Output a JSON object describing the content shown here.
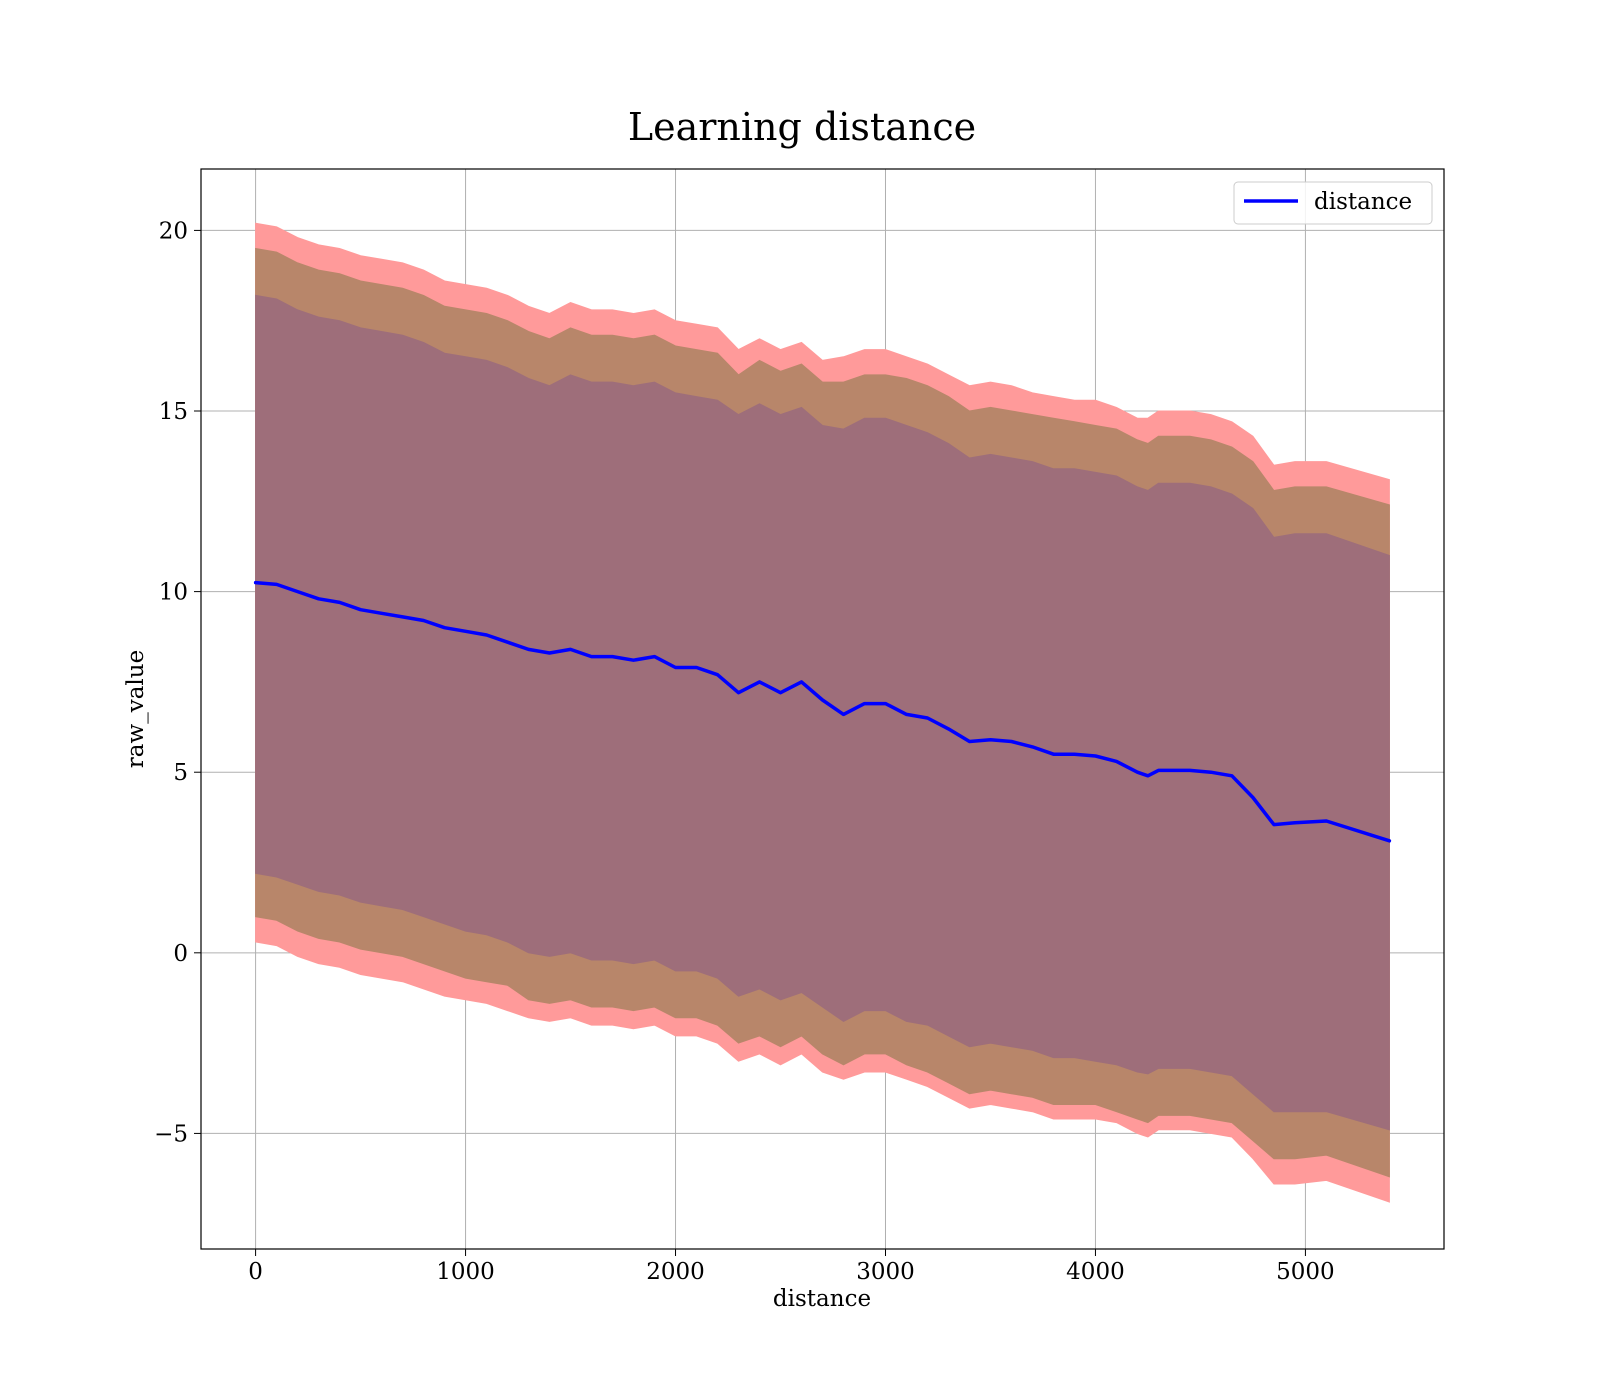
{
  "chart_data": {
    "type": "line",
    "title": "Learning distance",
    "xlabel": "distance",
    "ylabel": "raw_value",
    "xlim": [
      -260,
      5660
    ],
    "ylim": [
      -8.2,
      21.7
    ],
    "xticks": [
      0,
      1000,
      2000,
      3000,
      4000,
      5000
    ],
    "yticks": [
      -5,
      0,
      5,
      10,
      15,
      20
    ],
    "xtick_labels": [
      "0",
      "1000",
      "2000",
      "3000",
      "4000",
      "5000"
    ],
    "ytick_labels": [
      "−5",
      "0",
      "5",
      "10",
      "15",
      "20"
    ],
    "grid": true,
    "legend": {
      "placement": "top-right",
      "entries": [
        "distance"
      ]
    },
    "colors": {
      "line": "#0000ff",
      "band_outer": "#ff9a9a",
      "band_middle": "#b8866a",
      "band_inner": "#9e6e7a"
    },
    "series": [
      {
        "name": "distance",
        "x": [
          0,
          100,
          200,
          300,
          400,
          500,
          600,
          700,
          800,
          900,
          1000,
          1100,
          1200,
          1300,
          1400,
          1500,
          1600,
          1700,
          1800,
          1900,
          2000,
          2100,
          2200,
          2300,
          2400,
          2500,
          2600,
          2700,
          2800,
          2900,
          3000,
          3100,
          3200,
          3300,
          3400,
          3500,
          3600,
          3700,
          3800,
          3900,
          4000,
          4100,
          4200,
          4250,
          4300,
          4450,
          4550,
          4650,
          4750,
          4850,
          4950,
          5100,
          5400
        ],
        "y": [
          10.25,
          10.2,
          10.0,
          9.8,
          9.7,
          9.5,
          9.4,
          9.3,
          9.2,
          9.0,
          8.9,
          8.8,
          8.6,
          8.4,
          8.3,
          8.4,
          8.2,
          8.2,
          8.1,
          8.2,
          7.9,
          7.9,
          7.7,
          7.2,
          7.5,
          7.2,
          7.5,
          7.0,
          6.6,
          6.9,
          6.9,
          6.6,
          6.5,
          6.2,
          5.85,
          5.9,
          5.85,
          5.7,
          5.5,
          5.5,
          5.45,
          5.3,
          5.0,
          4.9,
          5.05,
          5.05,
          5.0,
          4.9,
          4.3,
          3.55,
          3.6,
          3.65,
          3.1
        ]
      }
    ],
    "bands": [
      {
        "sd": 1,
        "lower": [
          2.2,
          2.1,
          1.9,
          1.7,
          1.6,
          1.4,
          1.3,
          1.2,
          1.0,
          0.8,
          0.6,
          0.5,
          0.3,
          0.0,
          -0.1,
          0.0,
          -0.2,
          -0.2,
          -0.3,
          -0.2,
          -0.5,
          -0.5,
          -0.7,
          -1.2,
          -1.0,
          -1.3,
          -1.1,
          -1.5,
          -1.9,
          -1.6,
          -1.6,
          -1.9,
          -2.0,
          -2.3,
          -2.6,
          -2.5,
          -2.6,
          -2.7,
          -2.9,
          -2.9,
          -3.0,
          -3.1,
          -3.3,
          -3.35,
          -3.2,
          -3.2,
          -3.3,
          -3.4,
          -3.9,
          -4.4,
          -4.4,
          -4.4,
          -4.9
        ],
        "upper": [
          18.2,
          18.1,
          17.8,
          17.6,
          17.5,
          17.3,
          17.2,
          17.1,
          16.9,
          16.6,
          16.5,
          16.4,
          16.2,
          15.9,
          15.7,
          16.0,
          15.8,
          15.8,
          15.7,
          15.8,
          15.5,
          15.4,
          15.3,
          14.9,
          15.2,
          14.9,
          15.1,
          14.6,
          14.5,
          14.8,
          14.8,
          14.6,
          14.4,
          14.1,
          13.7,
          13.8,
          13.7,
          13.6,
          13.4,
          13.4,
          13.3,
          13.2,
          12.9,
          12.8,
          13.0,
          13.0,
          12.9,
          12.7,
          12.3,
          11.5,
          11.6,
          11.6,
          11.0
        ]
      },
      {
        "sd": 2,
        "lower": [
          1.0,
          0.9,
          0.6,
          0.4,
          0.3,
          0.1,
          0.0,
          -0.1,
          -0.3,
          -0.5,
          -0.7,
          -0.8,
          -0.9,
          -1.3,
          -1.4,
          -1.3,
          -1.5,
          -1.5,
          -1.6,
          -1.5,
          -1.8,
          -1.8,
          -2.0,
          -2.5,
          -2.3,
          -2.6,
          -2.3,
          -2.8,
          -3.1,
          -2.8,
          -2.8,
          -3.1,
          -3.3,
          -3.6,
          -3.9,
          -3.8,
          -3.9,
          -4.0,
          -4.2,
          -4.2,
          -4.2,
          -4.4,
          -4.6,
          -4.7,
          -4.5,
          -4.5,
          -4.6,
          -4.7,
          -5.2,
          -5.7,
          -5.7,
          -5.6,
          -6.2
        ],
        "upper": [
          19.5,
          19.4,
          19.1,
          18.9,
          18.8,
          18.6,
          18.5,
          18.4,
          18.2,
          17.9,
          17.8,
          17.7,
          17.5,
          17.2,
          17.0,
          17.3,
          17.1,
          17.1,
          17.0,
          17.1,
          16.8,
          16.7,
          16.6,
          16.0,
          16.4,
          16.1,
          16.3,
          15.8,
          15.8,
          16.0,
          16.0,
          15.9,
          15.7,
          15.4,
          15.0,
          15.1,
          15.0,
          14.9,
          14.8,
          14.7,
          14.6,
          14.5,
          14.2,
          14.1,
          14.3,
          14.3,
          14.2,
          14.0,
          13.6,
          12.8,
          12.9,
          12.9,
          12.4
        ]
      },
      {
        "sd": 3,
        "lower": [
          0.3,
          0.2,
          -0.1,
          -0.3,
          -0.4,
          -0.6,
          -0.7,
          -0.8,
          -1.0,
          -1.2,
          -1.3,
          -1.4,
          -1.6,
          -1.8,
          -1.9,
          -1.8,
          -2.0,
          -2.0,
          -2.1,
          -2.0,
          -2.3,
          -2.3,
          -2.5,
          -3.0,
          -2.8,
          -3.1,
          -2.8,
          -3.3,
          -3.5,
          -3.3,
          -3.3,
          -3.5,
          -3.7,
          -4.0,
          -4.3,
          -4.2,
          -4.3,
          -4.4,
          -4.6,
          -4.6,
          -4.6,
          -4.7,
          -5.0,
          -5.1,
          -4.9,
          -4.9,
          -5.0,
          -5.1,
          -5.7,
          -6.4,
          -6.4,
          -6.3,
          -6.9
        ],
        "upper": [
          20.2,
          20.1,
          19.8,
          19.6,
          19.5,
          19.3,
          19.2,
          19.1,
          18.9,
          18.6,
          18.5,
          18.4,
          18.2,
          17.9,
          17.7,
          18.0,
          17.8,
          17.8,
          17.7,
          17.8,
          17.5,
          17.4,
          17.3,
          16.7,
          17.0,
          16.7,
          16.9,
          16.4,
          16.5,
          16.7,
          16.7,
          16.5,
          16.3,
          16.0,
          15.7,
          15.8,
          15.7,
          15.5,
          15.4,
          15.3,
          15.3,
          15.1,
          14.8,
          14.8,
          15.0,
          15.0,
          14.9,
          14.7,
          14.3,
          13.5,
          13.6,
          13.6,
          13.1
        ]
      }
    ]
  }
}
